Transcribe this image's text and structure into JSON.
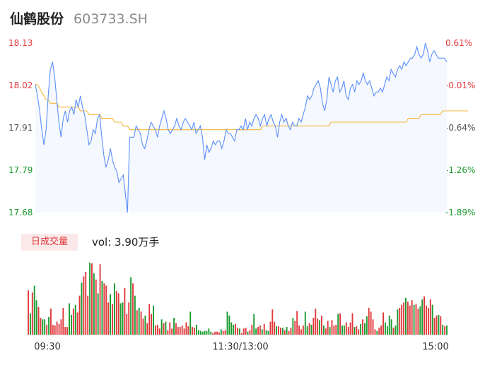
{
  "header": {
    "stock_name": "仙鹤股份",
    "stock_code": "603733.SH"
  },
  "volume_panel": {
    "tab_label": "日成交量",
    "vol_prefix": "vol: ",
    "vol_value": "3.90万手"
  },
  "colors": {
    "up": "#e0393c",
    "down": "#1a9b2f",
    "price_line": "#5b8ff9",
    "avg_line": "#f5b53c",
    "area_fill": "#f5f8fe"
  },
  "chart_data": [
    {
      "type": "line",
      "y_axis_left": [
        "18.13",
        "18.02",
        "17.91",
        "17.79",
        "17.68"
      ],
      "y_axis_right": [
        "0.61%",
        "-0.01%",
        "-0.64%",
        "-1.26%",
        "-1.89%"
      ],
      "ylim": [
        17.68,
        18.13
      ],
      "x_ticks": [
        "09:30",
        "11:30/13:00",
        "15:00"
      ],
      "series": [
        {
          "key": "price",
          "values": [
            18.02,
            17.99,
            17.95,
            17.9,
            17.86,
            17.9,
            17.99,
            18.06,
            18.08,
            18.04,
            17.98,
            17.92,
            17.88,
            17.93,
            17.95,
            17.92,
            17.95,
            17.96,
            17.94,
            17.98,
            17.96,
            17.99,
            17.96,
            17.94,
            17.9,
            17.86,
            17.87,
            17.9,
            17.89,
            17.93,
            17.94,
            17.88,
            17.83,
            17.8,
            17.82,
            17.85,
            17.82,
            17.8,
            17.79,
            17.76,
            17.77,
            17.78,
            17.73,
            17.68,
            17.88,
            17.88,
            17.88,
            17.91,
            17.9,
            17.89,
            17.86,
            17.85,
            17.87,
            17.9,
            17.92,
            17.91,
            17.9,
            17.88,
            17.91,
            17.93,
            17.95,
            17.93,
            17.9,
            17.89,
            17.9,
            17.91,
            17.93,
            17.91,
            17.9,
            17.92,
            17.93,
            17.92,
            17.91,
            17.9,
            17.92,
            17.89,
            17.9,
            17.91,
            17.88,
            17.82,
            17.86,
            17.84,
            17.85,
            17.87,
            17.86,
            17.87,
            17.87,
            17.85,
            17.87,
            17.9,
            17.89,
            17.89,
            17.88,
            17.87,
            17.9,
            17.9,
            17.91,
            17.9,
            17.93,
            17.9,
            17.92,
            17.91,
            17.93,
            17.94,
            17.93,
            17.91,
            17.93,
            17.94,
            17.91,
            17.93,
            17.94,
            17.92,
            17.91,
            17.88,
            17.92,
            17.94,
            17.92,
            17.93,
            17.91,
            17.9,
            17.92,
            17.91,
            17.91,
            17.93,
            17.92,
            17.94,
            17.96,
            17.99,
            17.98,
            17.99,
            18.01,
            18.02,
            18.03,
            18.01,
            17.97,
            17.95,
            17.98,
            18.04,
            18.02,
            18.0,
            18.03,
            18.04,
            18.0,
            18.01,
            18.03,
            17.99,
            17.98,
            18.01,
            18.02,
            18.0,
            18.03,
            18.02,
            18.03,
            18.05,
            18.03,
            18.02,
            18.03,
            18.01,
            17.99,
            18.0,
            18.0,
            18.01,
            18.0,
            18.02,
            18.04,
            18.03,
            18.06,
            18.05,
            18.04,
            18.06,
            18.07,
            18.06,
            18.08,
            18.07,
            18.08,
            18.09,
            18.09,
            18.1,
            18.12,
            18.1,
            18.09,
            18.1,
            18.13,
            18.11,
            18.08,
            18.1,
            18.11,
            18.1,
            18.09,
            18.09,
            18.09,
            18.09,
            18.08
          ]
        },
        {
          "key": "average",
          "values": [
            18.02,
            18.02,
            18.01,
            18.0,
            17.99,
            17.98,
            17.98,
            17.97,
            17.97,
            17.97,
            17.97,
            17.96,
            17.96,
            17.96,
            17.96,
            17.96,
            17.96,
            17.96,
            17.96,
            17.96,
            17.96,
            17.95,
            17.95,
            17.95,
            17.95,
            17.94,
            17.94,
            17.94,
            17.94,
            17.94,
            17.94,
            17.93,
            17.93,
            17.93,
            17.93,
            17.93,
            17.93,
            17.92,
            17.92,
            17.92,
            17.92,
            17.91,
            17.91,
            17.91,
            17.9,
            17.9,
            17.9,
            17.9,
            17.9,
            17.9,
            17.9,
            17.9,
            17.9,
            17.9,
            17.9,
            17.9,
            17.9,
            17.9,
            17.9,
            17.9,
            17.9,
            17.9,
            17.9,
            17.9,
            17.9,
            17.9,
            17.9,
            17.9,
            17.9,
            17.9,
            17.9,
            17.9,
            17.9,
            17.9,
            17.9,
            17.9,
            17.9,
            17.9,
            17.9,
            17.9,
            17.9,
            17.9,
            17.9,
            17.9,
            17.9,
            17.9,
            17.9,
            17.9,
            17.9,
            17.9,
            17.9,
            17.9,
            17.9,
            17.9,
            17.9,
            17.9,
            17.9,
            17.9,
            17.9,
            17.9,
            17.9,
            17.9,
            17.9,
            17.9,
            17.9,
            17.9,
            17.91,
            17.91,
            17.91,
            17.91,
            17.91,
            17.91,
            17.91,
            17.91,
            17.91,
            17.91,
            17.91,
            17.91,
            17.91,
            17.91,
            17.91,
            17.91,
            17.91,
            17.91,
            17.91,
            17.91,
            17.91,
            17.91,
            17.91,
            17.91,
            17.91,
            17.91,
            17.91,
            17.91,
            17.91,
            17.91,
            17.91,
            17.91,
            17.92,
            17.92,
            17.92,
            17.92,
            17.92,
            17.92,
            17.92,
            17.92,
            17.92,
            17.92,
            17.92,
            17.92,
            17.92,
            17.92,
            17.92,
            17.92,
            17.92,
            17.92,
            17.92,
            17.92,
            17.92,
            17.92,
            17.92,
            17.92,
            17.92,
            17.92,
            17.92,
            17.92,
            17.92,
            17.92,
            17.92,
            17.92,
            17.92,
            17.92,
            17.92,
            17.92,
            17.93,
            17.93,
            17.93,
            17.93,
            17.93,
            17.93,
            17.94,
            17.94,
            17.94,
            17.94,
            17.94,
            17.94,
            17.94,
            17.94,
            17.94,
            17.94,
            17.95,
            17.95,
            17.95,
            17.95,
            17.95,
            17.95,
            17.95,
            17.95,
            17.95,
            17.95,
            17.95,
            17.95,
            17.95
          ]
        }
      ]
    },
    {
      "type": "bar",
      "series": [
        {
          "key": "volume",
          "values": [
            58,
            28,
            55,
            64,
            45,
            36,
            22,
            20,
            20,
            13,
            23,
            34,
            13,
            12,
            17,
            14,
            20,
            35,
            10,
            10,
            41,
            26,
            34,
            39,
            29,
            51,
            68,
            76,
            82,
            51,
            94,
            93,
            80,
            72,
            54,
            92,
            70,
            67,
            64,
            42,
            53,
            40,
            67,
            57,
            54,
            41,
            42,
            61,
            27,
            42,
            75,
            67,
            51,
            32,
            35,
            30,
            21,
            25,
            15,
            40,
            27,
            38,
            12,
            13,
            8,
            20,
            15,
            17,
            6,
            16,
            8,
            22,
            15,
            10,
            10,
            12,
            8,
            16,
            11,
            30,
            10,
            9,
            13,
            6,
            5,
            4,
            5,
            5,
            8,
            4,
            2,
            4,
            4,
            3,
            7,
            5,
            6,
            30,
            25,
            16,
            13,
            14,
            9,
            8,
            2,
            8,
            9,
            4,
            6,
            13,
            27,
            8,
            10,
            12,
            7,
            14,
            6,
            5,
            17,
            33,
            17,
            11,
            11,
            9,
            9,
            6,
            10,
            5,
            9,
            22,
            18,
            31,
            12,
            7,
            12,
            30,
            11,
            15,
            13,
            22,
            34,
            21,
            19,
            25,
            12,
            8,
            18,
            10,
            19,
            12,
            13,
            27,
            28,
            12,
            12,
            16,
            10,
            16,
            28,
            10,
            11,
            7,
            14,
            20,
            15,
            24,
            35,
            30,
            20,
            7,
            5,
            9,
            12,
            29,
            16,
            11,
            25,
            20,
            9,
            12,
            33,
            35,
            39,
            42,
            48,
            43,
            38,
            45,
            39,
            40,
            34,
            37,
            46,
            50,
            38,
            35,
            46,
            39,
            22,
            25,
            26,
            24,
            13,
            11,
            12
          ],
          "direction": [
            "up",
            "down",
            "up",
            "down",
            "down",
            "up",
            "up",
            "down",
            "down",
            "up",
            "down",
            "up",
            "up",
            "up",
            "up",
            "up",
            "up",
            "up",
            "up",
            "up",
            "down",
            "down",
            "up",
            "down",
            "up",
            "up",
            "down",
            "up",
            "up",
            "up",
            "down",
            "up",
            "down",
            "up",
            "down",
            "up",
            "down",
            "up",
            "up",
            "up",
            "down",
            "up",
            "down",
            "up",
            "up",
            "down",
            "down",
            "up",
            "up",
            "up",
            "down",
            "up",
            "down",
            "up",
            "down",
            "up",
            "up",
            "down",
            "up",
            "up",
            "up",
            "down",
            "up",
            "up",
            "up",
            "down",
            "up",
            "down",
            "up",
            "up",
            "up",
            "down",
            "up",
            "up",
            "up",
            "up",
            "up",
            "up",
            "up",
            "down",
            "up",
            "up",
            "down",
            "down",
            "down",
            "down",
            "down",
            "down",
            "down",
            "down",
            "up",
            "up",
            "up",
            "up",
            "down",
            "up",
            "up",
            "down",
            "down",
            "down",
            "down",
            "up",
            "up",
            "down",
            "up",
            "up",
            "up",
            "down",
            "up",
            "up",
            "down",
            "down",
            "up",
            "up",
            "down",
            "up",
            "down",
            "down",
            "up",
            "up",
            "up",
            "down",
            "up",
            "up",
            "down",
            "up",
            "down",
            "up",
            "up",
            "down",
            "up",
            "up",
            "up",
            "up",
            "up",
            "down",
            "down",
            "up",
            "down",
            "up",
            "up",
            "up",
            "down",
            "up",
            "down",
            "up",
            "up",
            "down",
            "up",
            "up",
            "up",
            "down",
            "up",
            "down",
            "down",
            "up",
            "up",
            "up",
            "up",
            "down",
            "up",
            "up",
            "down",
            "up",
            "down",
            "down",
            "up",
            "up",
            "up",
            "up",
            "down",
            "up",
            "up",
            "up",
            "down",
            "down",
            "down",
            "down",
            "up",
            "down",
            "down",
            "up",
            "up",
            "up",
            "down",
            "up",
            "up",
            "up",
            "down",
            "up",
            "up",
            "down",
            "down",
            "up",
            "up",
            "up",
            "up",
            "down",
            "up",
            "up",
            "down",
            "up",
            "down",
            "up",
            "down"
          ]
        }
      ]
    }
  ]
}
